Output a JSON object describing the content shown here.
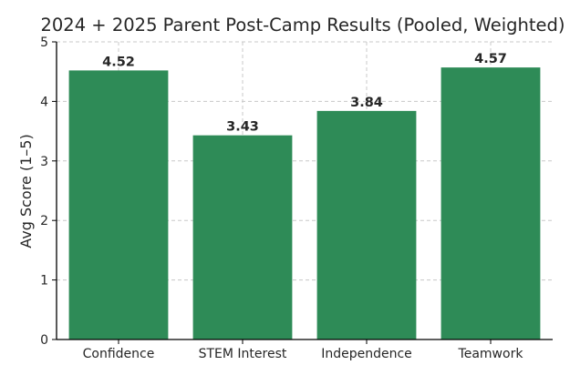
{
  "chart_data": {
    "type": "bar",
    "title": "2024 + 2025 Parent Post-Camp Results (Pooled, Weighted)",
    "ylabel": "Avg Score (1–5)",
    "xlabel": "",
    "categories": [
      "Confidence",
      "STEM Interest",
      "Independence",
      "Teamwork"
    ],
    "values": [
      4.52,
      3.43,
      3.84,
      4.57
    ],
    "value_labels": [
      "4.52",
      "3.43",
      "3.84",
      "4.57"
    ],
    "ylim": [
      0,
      5
    ],
    "yticks": [
      "0",
      "1",
      "2",
      "3",
      "4",
      "5"
    ],
    "grid": true,
    "bar_color": "#2e8b57"
  }
}
